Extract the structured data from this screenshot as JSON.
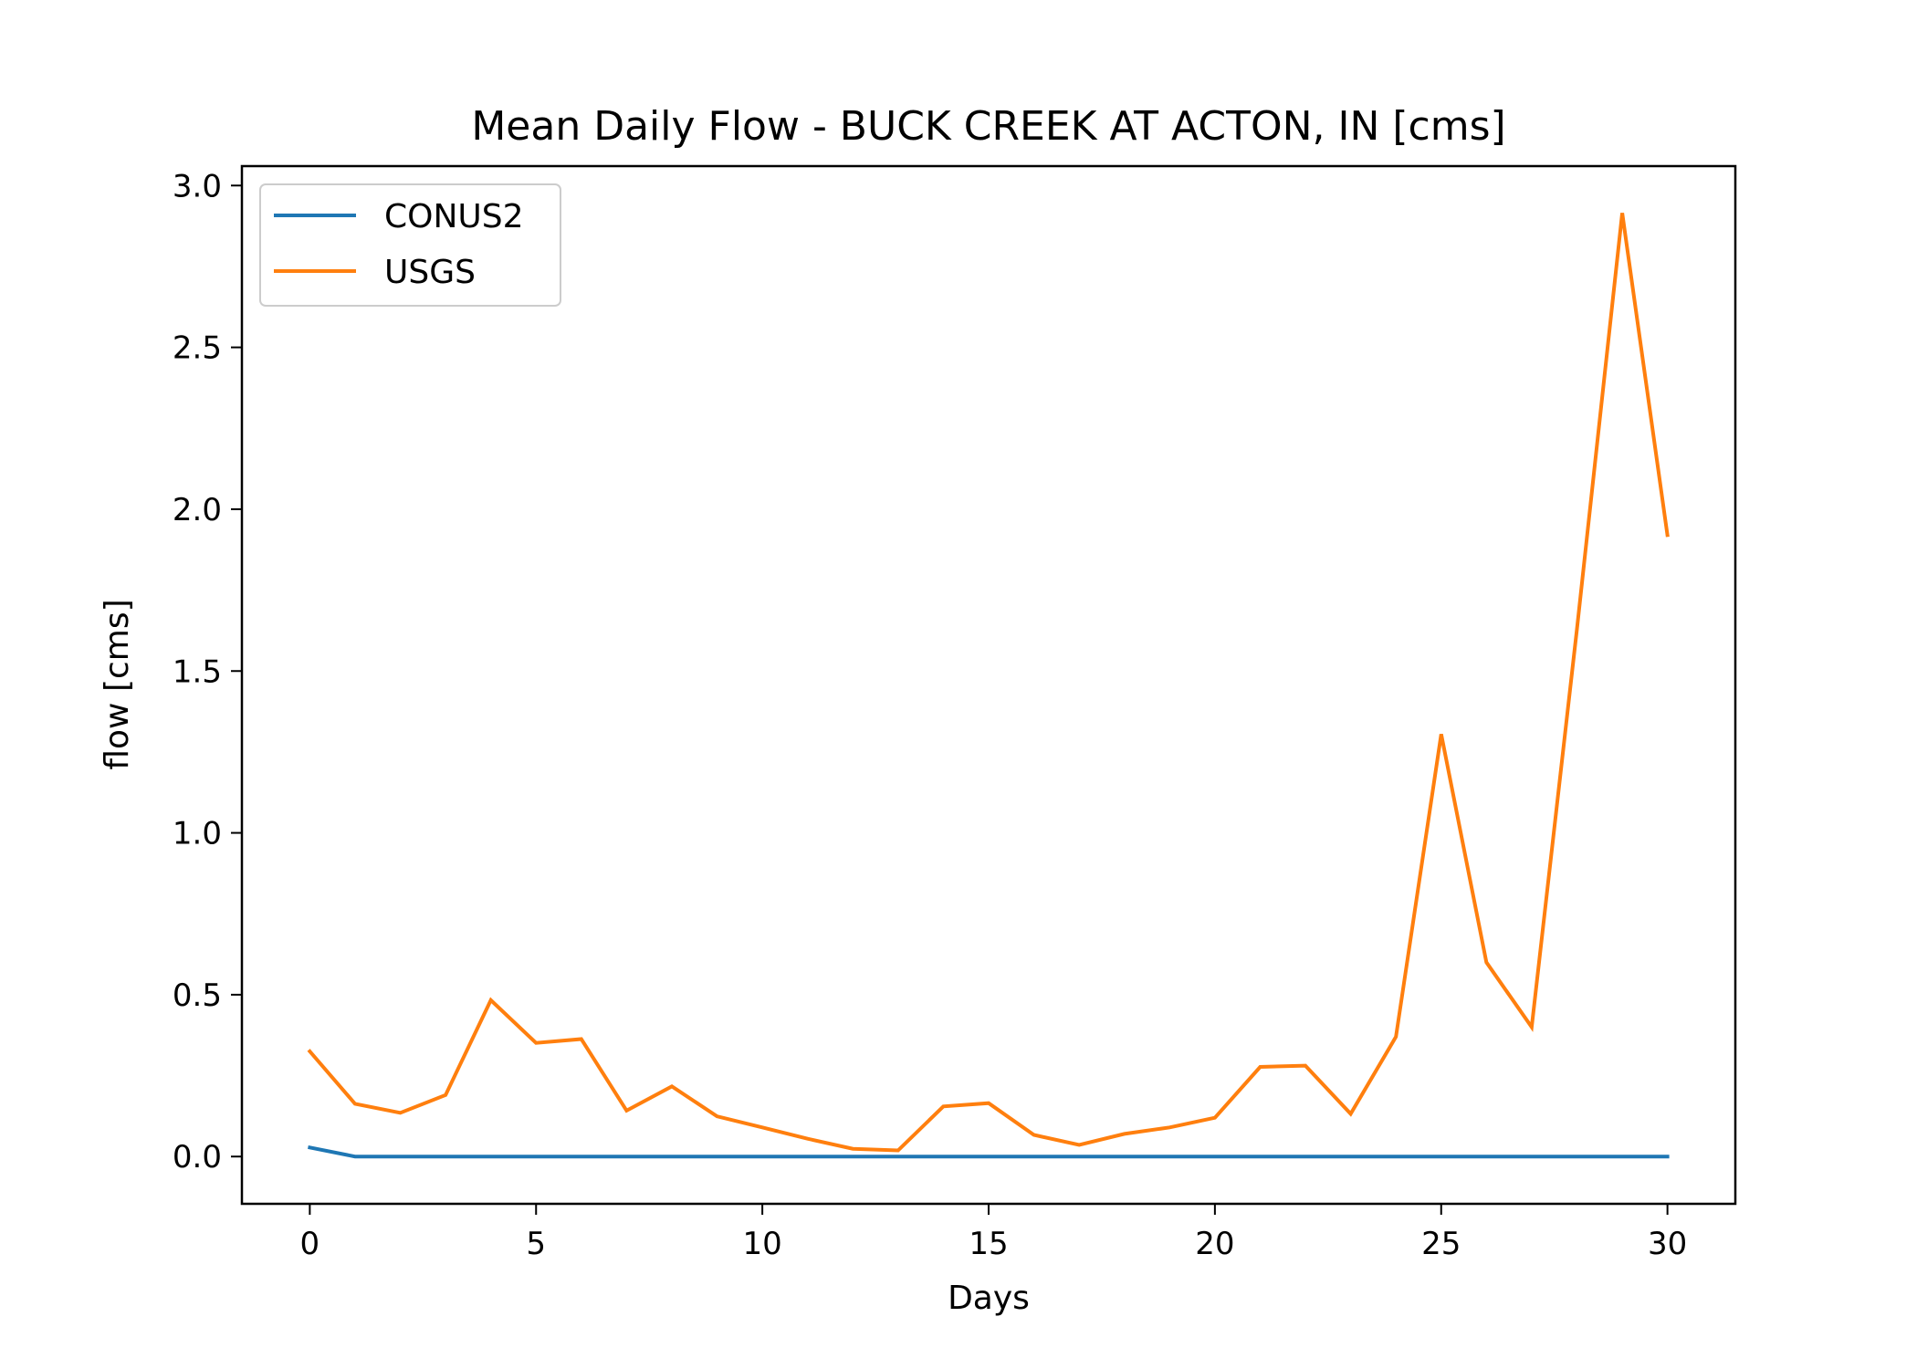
{
  "chart_data": {
    "type": "line",
    "title": "Mean Daily Flow - BUCK CREEK AT ACTON, IN [cms]",
    "xlabel": "Days",
    "ylabel": "flow [cms]",
    "xlim": [
      -1.5,
      31.5
    ],
    "ylim": [
      -0.146,
      3.06
    ],
    "xticks": [
      0,
      5,
      10,
      15,
      20,
      25,
      30
    ],
    "xtick_labels": [
      "0",
      "5",
      "10",
      "15",
      "20",
      "25",
      "30"
    ],
    "yticks": [
      0.0,
      0.5,
      1.0,
      1.5,
      2.0,
      2.5,
      3.0
    ],
    "ytick_labels": [
      "0.0",
      "0.5",
      "1.0",
      "1.5",
      "2.0",
      "2.5",
      "3.0"
    ],
    "grid": false,
    "legend_position": "top-left",
    "x": [
      0,
      1,
      2,
      3,
      4,
      5,
      6,
      7,
      8,
      9,
      10,
      11,
      12,
      13,
      14,
      15,
      16,
      17,
      18,
      19,
      20,
      21,
      22,
      23,
      24,
      25,
      26,
      27,
      28,
      29,
      30
    ],
    "series": [
      {
        "name": "CONUS2",
        "color": "#1f77b4",
        "values": [
          0.028,
          0.0,
          0.0,
          0.0,
          0.0,
          0.0,
          0.0,
          0.0,
          0.0,
          0.0,
          0.0,
          0.0,
          0.0,
          0.0,
          0.0,
          0.0,
          0.0,
          0.0,
          0.0,
          0.0,
          0.0,
          0.0,
          0.0,
          0.0,
          0.0,
          0.0,
          0.0,
          0.0,
          0.0,
          0.0,
          0.0
        ]
      },
      {
        "name": "USGS",
        "color": "#ff7f0e",
        "values": [
          0.325,
          0.163,
          0.135,
          0.19,
          0.483,
          0.351,
          0.363,
          0.142,
          0.217,
          0.124,
          0.09,
          0.055,
          0.024,
          0.019,
          0.155,
          0.165,
          0.067,
          0.036,
          0.07,
          0.09,
          0.12,
          0.277,
          0.281,
          0.132,
          0.37,
          1.305,
          0.6,
          0.4,
          1.63,
          2.915,
          1.92
        ]
      }
    ]
  }
}
